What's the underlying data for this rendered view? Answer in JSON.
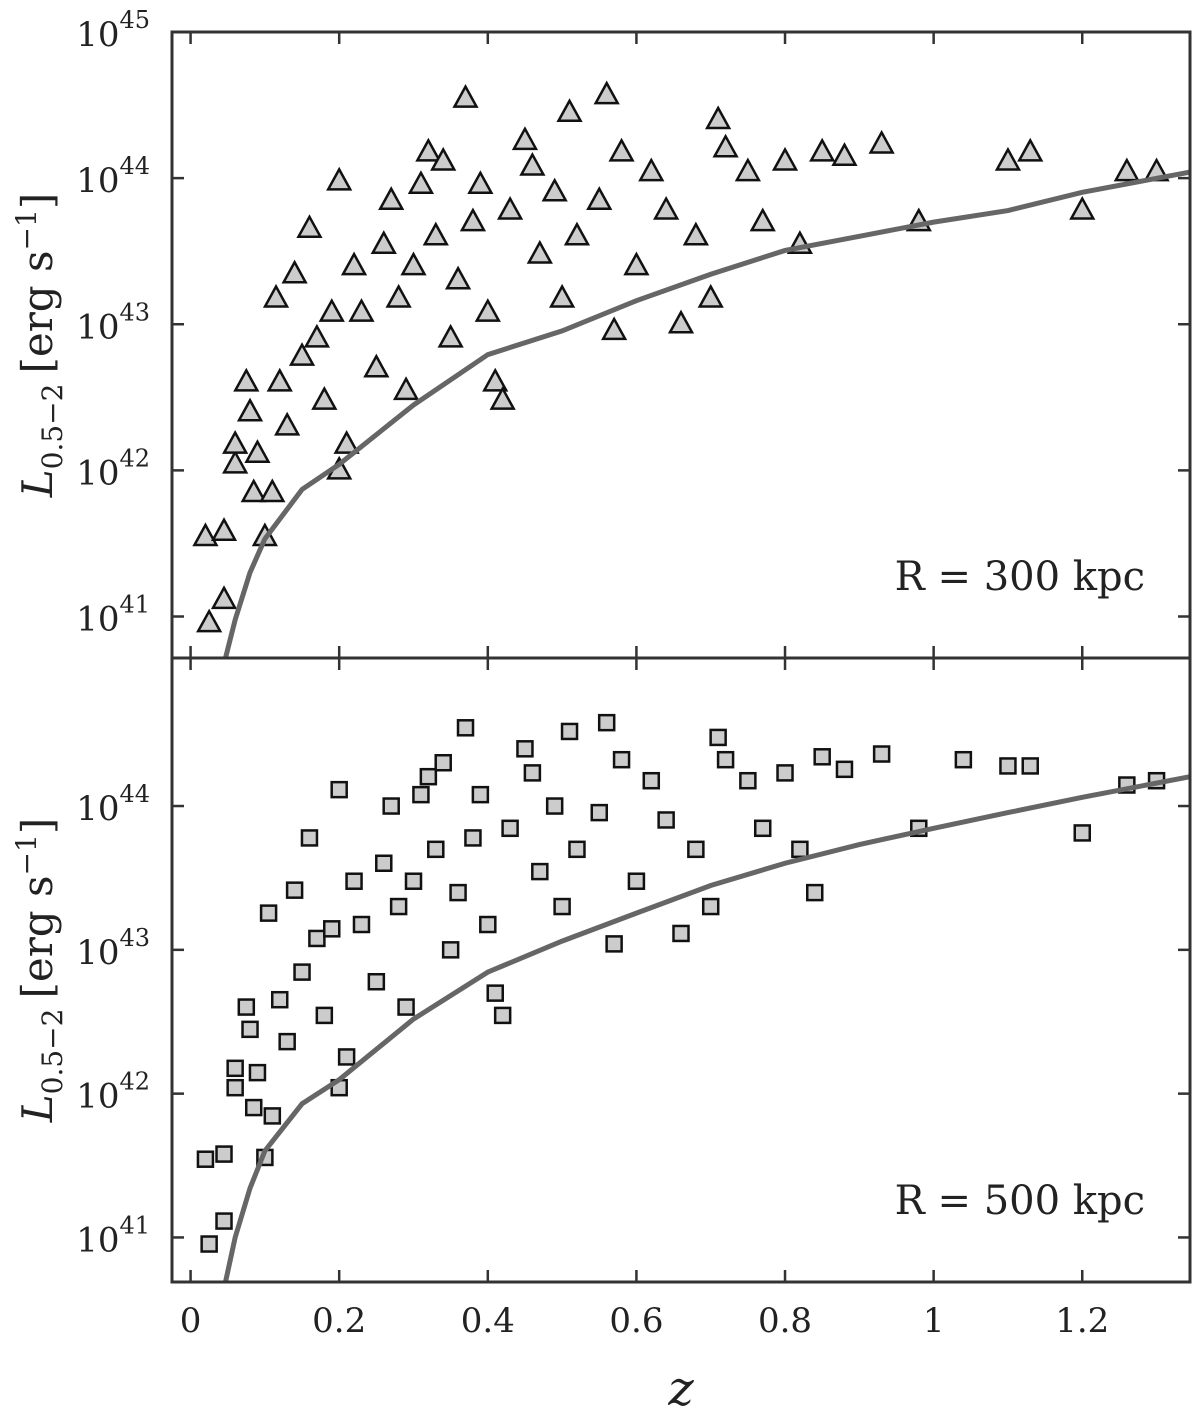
{
  "chart_data": [
    {
      "type": "scatter",
      "marker": "triangle",
      "color": "#cccccc",
      "yscale": "log",
      "ylabel": {
        "symbol": "L",
        "subscript": "0.5−2",
        "unit": "[erg s",
        "exponent": "−1",
        "close": "]"
      },
      "annotation": "R = 300 kpc",
      "xlim": [
        -0.025,
        1.345
      ],
      "ylim": [
        5.2e+40,
        1e+45
      ],
      "xticks": [
        0,
        0.2,
        0.4,
        0.6,
        0.8,
        1,
        1.2
      ],
      "yticks": [
        {
          "value": 1e+41,
          "label": "10",
          "superscript": "41"
        },
        {
          "value": 1e+42,
          "label": "10",
          "superscript": "42"
        },
        {
          "value": 1e+43,
          "label": "10",
          "superscript": "43"
        },
        {
          "value": 1e+44,
          "label": "10",
          "superscript": "44"
        },
        {
          "value": 1e+45,
          "label": "10",
          "superscript": "45"
        }
      ],
      "x": [
        0.02,
        0.025,
        0.045,
        0.045,
        0.06,
        0.06,
        0.075,
        0.08,
        0.085,
        0.09,
        0.1,
        0.11,
        0.115,
        0.12,
        0.13,
        0.14,
        0.15,
        0.16,
        0.17,
        0.18,
        0.19,
        0.2,
        0.2,
        0.21,
        0.22,
        0.23,
        0.25,
        0.26,
        0.27,
        0.28,
        0.29,
        0.3,
        0.31,
        0.32,
        0.33,
        0.34,
        0.35,
        0.36,
        0.37,
        0.38,
        0.39,
        0.4,
        0.41,
        0.42,
        0.43,
        0.45,
        0.46,
        0.47,
        0.49,
        0.5,
        0.51,
        0.52,
        0.55,
        0.56,
        0.57,
        0.58,
        0.6,
        0.62,
        0.64,
        0.66,
        0.68,
        0.7,
        0.71,
        0.72,
        0.75,
        0.77,
        0.8,
        0.82,
        0.85,
        0.88,
        0.93,
        0.98,
        1.1,
        1.13,
        1.2,
        1.26,
        1.3
      ],
      "values": [
        3.5e+41,
        9e+40,
        3.8e+41,
        1.3e+41,
        1.1e+42,
        1.5e+42,
        4e+42,
        2.5e+42,
        7e+41,
        1.3e+42,
        3.5e+41,
        7e+41,
        1.5e+43,
        4e+42,
        2e+42,
        2.2e+43,
        6e+42,
        4.5e+43,
        8e+42,
        3e+42,
        1.2e+43,
        9.5e+43,
        1e+42,
        1.5e+42,
        2.5e+43,
        1.2e+43,
        5e+42,
        3.5e+43,
        7e+43,
        1.5e+43,
        3.5e+42,
        2.5e+43,
        9e+43,
        1.5e+44,
        4e+43,
        1.3e+44,
        8e+42,
        2e+43,
        3.5e+44,
        5e+43,
        9e+43,
        1.2e+43,
        4e+42,
        3e+42,
        6e+43,
        1.8e+44,
        1.2e+44,
        3e+43,
        8e+43,
        1.5e+43,
        2.8e+44,
        4e+43,
        7e+43,
        3.7e+44,
        9e+42,
        1.5e+44,
        2.5e+43,
        1.1e+44,
        6e+43,
        1e+43,
        4e+43,
        1.5e+43,
        2.5e+44,
        1.6e+44,
        1.1e+44,
        5e+43,
        1.3e+44,
        3.5e+43,
        1.5e+44,
        1.4e+44,
        1.7e+44,
        5e+43,
        1.3e+44,
        1.5e+44,
        6e+43,
        1.1e+44,
        1.1e+44
      ],
      "curve": {
        "color": "#666666",
        "x": [
          0.047,
          0.06,
          0.08,
          0.1,
          0.15,
          0.2,
          0.3,
          0.4,
          0.5,
          0.6,
          0.7,
          0.8,
          0.9,
          1.0,
          1.1,
          1.2,
          1.345
        ],
        "values": [
          5.2e+40,
          9.5e+40,
          2e+41,
          3.4e+41,
          7.4e+41,
          1.1e+42,
          2.8e+42,
          6.2e+42,
          9e+42,
          1.45e+43,
          2.2e+43,
          3.2e+43,
          4e+43,
          5e+43,
          6e+43,
          8e+43,
          1.1e+44
        ]
      }
    },
    {
      "type": "scatter",
      "marker": "square",
      "color": "#cccccc",
      "yscale": "log",
      "ylabel": {
        "symbol": "L",
        "subscript": "0.5−2",
        "unit": "[erg s",
        "exponent": "−1",
        "close": "]"
      },
      "xlabel": "z",
      "annotation": "R = 500 kpc",
      "xlim": [
        -0.025,
        1.345
      ],
      "ylim": [
        4.9e+40,
        1.07e+45
      ],
      "xticks": [
        0,
        0.2,
        0.4,
        0.6,
        0.8,
        1,
        1.2
      ],
      "yticks": [
        {
          "value": 1e+41,
          "label": "10",
          "superscript": "41"
        },
        {
          "value": 1e+42,
          "label": "10",
          "superscript": "42"
        },
        {
          "value": 1e+43,
          "label": "10",
          "superscript": "43"
        },
        {
          "value": 1e+44,
          "label": "10",
          "superscript": "44"
        }
      ],
      "x": [
        0.02,
        0.025,
        0.045,
        0.045,
        0.06,
        0.06,
        0.075,
        0.08,
        0.085,
        0.09,
        0.1,
        0.11,
        0.105,
        0.12,
        0.13,
        0.14,
        0.15,
        0.16,
        0.17,
        0.18,
        0.19,
        0.2,
        0.2,
        0.21,
        0.22,
        0.23,
        0.25,
        0.26,
        0.27,
        0.28,
        0.29,
        0.3,
        0.31,
        0.32,
        0.33,
        0.34,
        0.35,
        0.36,
        0.37,
        0.38,
        0.39,
        0.4,
        0.41,
        0.42,
        0.43,
        0.45,
        0.46,
        0.47,
        0.49,
        0.5,
        0.51,
        0.52,
        0.55,
        0.56,
        0.57,
        0.58,
        0.6,
        0.62,
        0.64,
        0.66,
        0.68,
        0.7,
        0.71,
        0.72,
        0.75,
        0.77,
        0.8,
        0.82,
        0.84,
        0.85,
        0.88,
        0.93,
        0.98,
        1.04,
        1.1,
        1.13,
        1.2,
        1.26,
        1.3
      ],
      "values": [
        3.5e+41,
        9e+40,
        3.8e+41,
        1.3e+41,
        1.1e+42,
        1.5e+42,
        4e+42,
        2.8e+42,
        8e+41,
        1.4e+42,
        3.6e+41,
        7e+41,
        1.8e+43,
        4.5e+42,
        2.3e+42,
        2.6e+43,
        7e+42,
        6e+43,
        1.2e+43,
        3.5e+42,
        1.4e+43,
        1.3e+44,
        1.1e+42,
        1.8e+42,
        3e+43,
        1.5e+43,
        6e+42,
        4e+43,
        1e+44,
        2e+43,
        4e+42,
        3e+43,
        1.2e+44,
        1.6e+44,
        5e+43,
        2e+44,
        1e+43,
        2.5e+43,
        3.5e+44,
        6e+43,
        1.2e+44,
        1.5e+43,
        5e+42,
        3.5e+42,
        7e+43,
        2.5e+44,
        1.7e+44,
        3.5e+43,
        1e+44,
        2e+43,
        3.3e+44,
        5e+43,
        9e+43,
        3.8e+44,
        1.1e+43,
        2.1e+44,
        3e+43,
        1.5e+44,
        8e+43,
        1.3e+43,
        5e+43,
        2e+43,
        3e+44,
        2.1e+44,
        1.5e+44,
        7e+43,
        1.7e+44,
        5e+43,
        2.5e+43,
        2.2e+44,
        1.8e+44,
        2.3e+44,
        7e+43,
        2.1e+44,
        1.9e+44,
        1.9e+44,
        6.5e+43,
        1.4e+44,
        1.5e+44
      ],
      "curve": {
        "color": "#666666",
        "x": [
          0.047,
          0.06,
          0.08,
          0.1,
          0.15,
          0.2,
          0.3,
          0.4,
          0.5,
          0.6,
          0.7,
          0.8,
          0.9,
          1.0,
          1.1,
          1.2,
          1.345
        ],
        "values": [
          4.9e+40,
          1e+41,
          2.2e+41,
          4e+41,
          8.5e+41,
          1.25e+42,
          3.3e+42,
          7e+42,
          1.15e+43,
          1.8e+43,
          2.8e+43,
          4e+43,
          5.4e+43,
          7e+43,
          9e+43,
          1.15e+44,
          1.6e+44
        ]
      }
    }
  ]
}
